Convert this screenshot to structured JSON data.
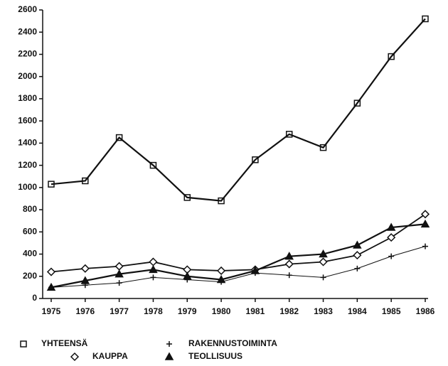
{
  "chart_data": {
    "type": "line",
    "categories": [
      "1975",
      "1976",
      "1977",
      "1978",
      "1979",
      "1980",
      "1981",
      "1982",
      "1983",
      "1984",
      "1985",
      "1986"
    ],
    "series": [
      {
        "name": "YHTEENSÄ",
        "color": "#111111",
        "marker": "square",
        "values": [
          1030,
          1060,
          1450,
          1200,
          910,
          880,
          1250,
          1480,
          1360,
          1760,
          2180,
          2520
        ]
      },
      {
        "name": "RAKENNUSTOIMINTA",
        "color": "#111111",
        "marker": "plus",
        "values": [
          100,
          120,
          140,
          190,
          170,
          150,
          230,
          210,
          190,
          270,
          380,
          470
        ]
      },
      {
        "name": "KAUPPA",
        "color": "#111111",
        "marker": "diamond",
        "values": [
          240,
          270,
          290,
          330,
          260,
          250,
          260,
          310,
          330,
          390,
          550,
          760
        ]
      },
      {
        "name": "TEOLLISUUS",
        "color": "#111111",
        "marker": "triangle",
        "values": [
          100,
          160,
          220,
          260,
          200,
          170,
          250,
          380,
          400,
          480,
          640,
          670
        ]
      }
    ],
    "ylim": [
      0,
      2600
    ],
    "yticks": [
      0,
      200,
      400,
      600,
      800,
      1000,
      1200,
      1400,
      1600,
      1800,
      2000,
      2200,
      2400,
      2600
    ],
    "grid": false
  }
}
